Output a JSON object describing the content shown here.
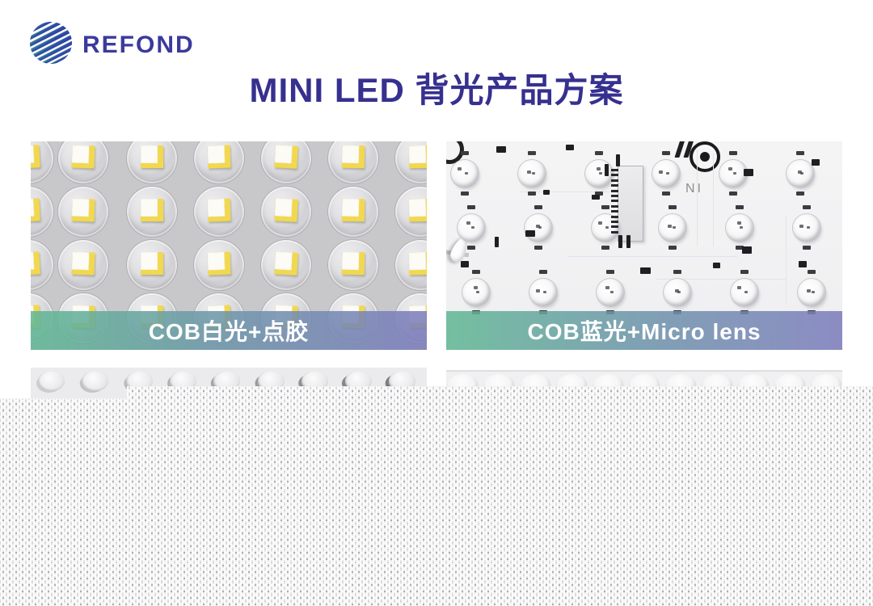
{
  "brand": {
    "name": "REFOND",
    "icon": "striped-globe",
    "color": "#3B3A9C"
  },
  "title": {
    "text": "MINI LED 背光产品方案",
    "color": "#36308F"
  },
  "panels": [
    {
      "id": "cob-white",
      "caption": "COB白光+点胶",
      "description": "close-up of COB white LED array with dispensed dome lenses on gray substrate"
    },
    {
      "id": "cob-blue",
      "caption": "COB蓝光+Micro lens",
      "silkscreen": "NI",
      "description": "white PCB with blue COB mini-LEDs, micro lenses, FPC connector and fiducial mark"
    }
  ],
  "partial_panels": [
    {
      "description": "partially visible photo: row of clear dome lenses on light board"
    },
    {
      "description": "partially visible photo: row of soft white micro lens bumps"
    }
  ],
  "caption_style": {
    "gradient_start": "#61B894",
    "gradient_end": "#7D7DBC",
    "text_color": "#FFFFFF"
  },
  "texture": {
    "name": "halftone-dot-grid",
    "coverage": "bottom area of page"
  }
}
